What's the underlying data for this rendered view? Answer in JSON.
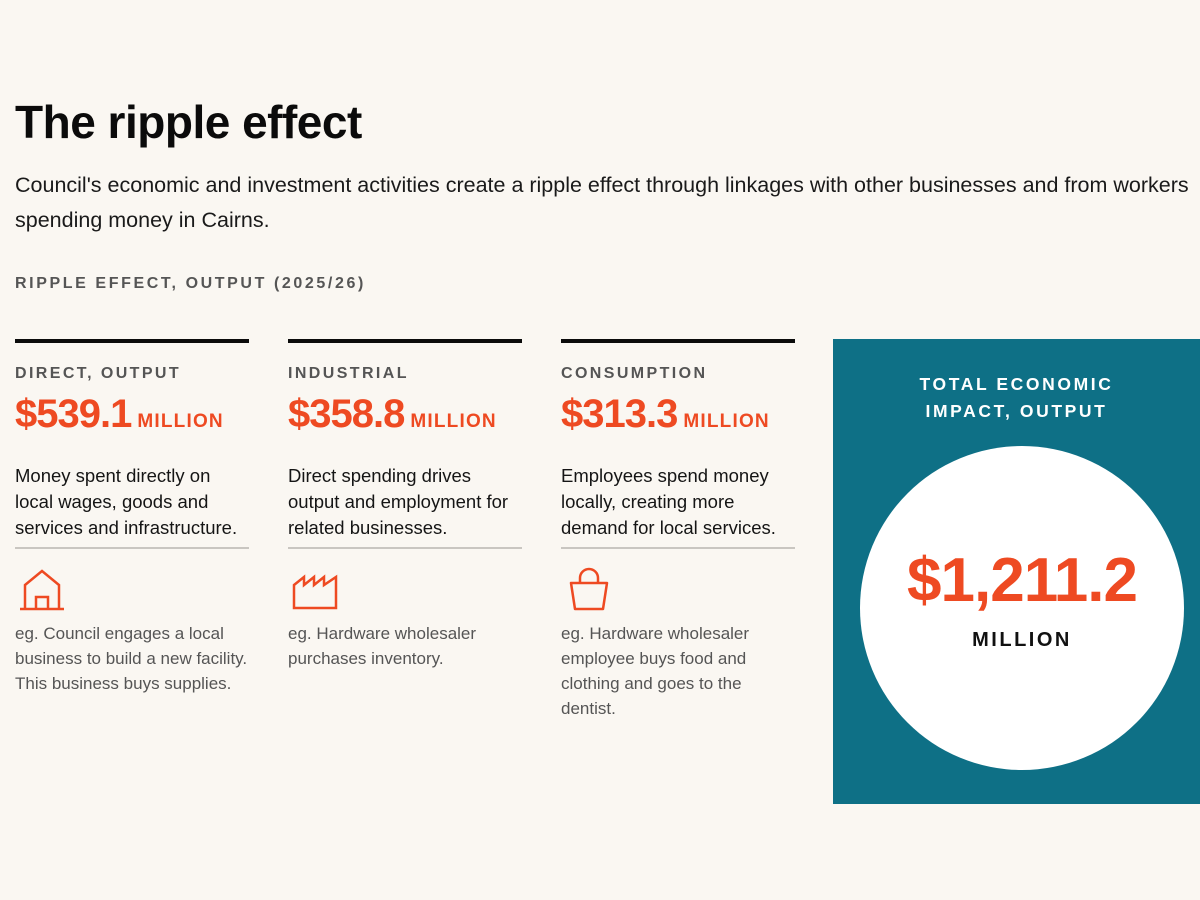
{
  "page": {
    "title": "The ripple effect",
    "intro": "Council's economic and investment activities create a ripple effect through linkages with other businesses and from workers spending money in Cairns.",
    "section_label": "RIPPLE EFFECT, OUTPUT (2025/26)"
  },
  "colors": {
    "accent": "#ee4a22",
    "panel": "#0e7086",
    "background": "#faf7f2"
  },
  "columns": [
    {
      "heading": "DIRECT, OUTPUT",
      "amount": "$539.1",
      "unit": "MILLION",
      "description": "Money spent directly on local wages, goods and services and infrastructure.",
      "icon": "house-icon",
      "example": "eg. Council engages a local business to build a new facility. This business buys supplies."
    },
    {
      "heading": "INDUSTRIAL",
      "amount": "$358.8",
      "unit": "MILLION",
      "description": "Direct spending drives output and employment for related businesses.",
      "icon": "factory-icon",
      "example": "eg. Hardware wholesaler purchases inventory."
    },
    {
      "heading": "CONSUMPTION",
      "amount": "$313.3",
      "unit": "MILLION",
      "description": "Employees spend money locally, creating more demand for local services.",
      "icon": "shopping-bag-icon",
      "example": "eg. Hardware wholesaler employee buys food and clothing and goes to the dentist."
    }
  ],
  "total": {
    "heading": "TOTAL ECONOMIC IMPACT, OUTPUT",
    "amount": "$1,211.2",
    "unit": "MILLION"
  }
}
